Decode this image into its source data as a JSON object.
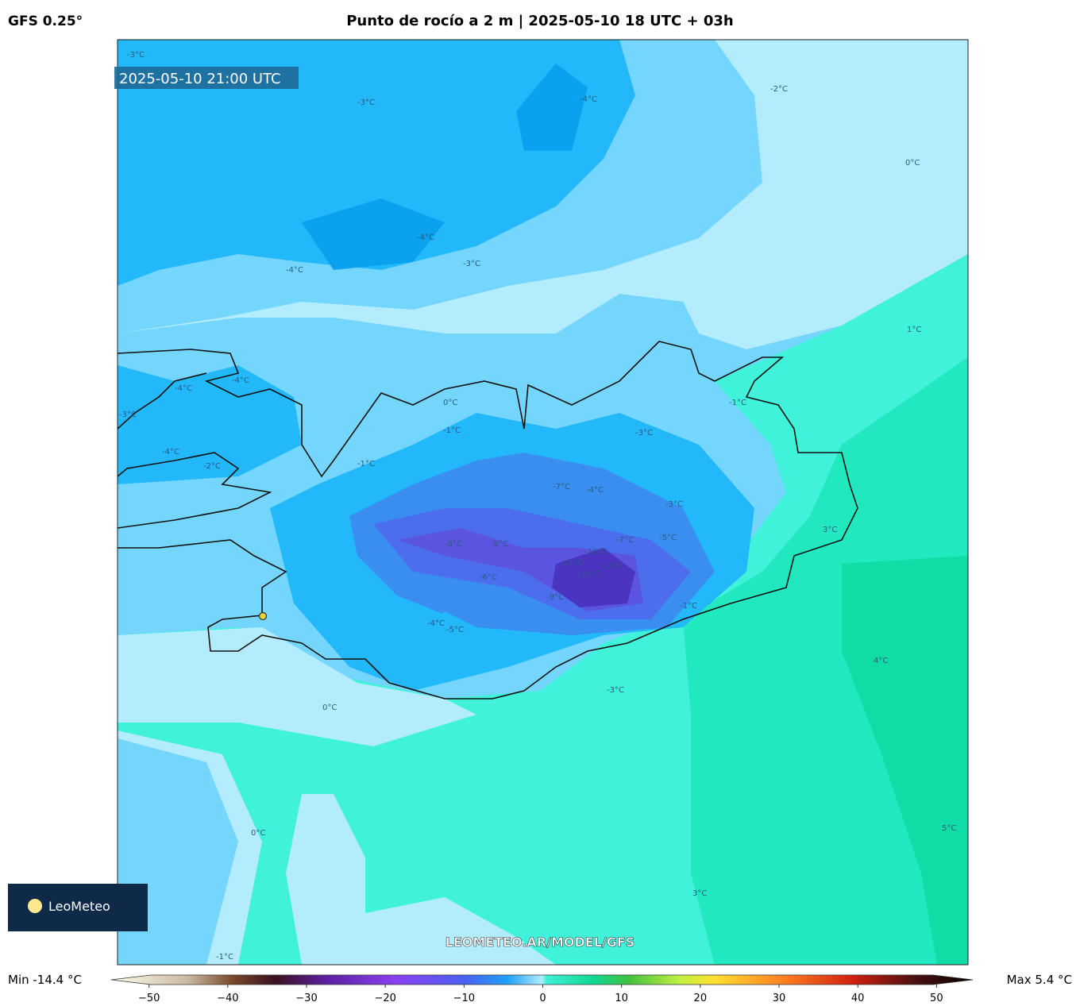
{
  "header": {
    "model": "GFS 0.25°",
    "title": "Punto de rocío a 2 m | 2025-05-10 18 UTC + 03h"
  },
  "map": {
    "valid_time": "2025-05-10 21:00 UTC",
    "watermark": "LEOMETEO.AR/MODEL/GFS",
    "logo": "LeoMeteo",
    "contour_labels": [
      "-3°C",
      "-3°C",
      "-4°C",
      "-2°C",
      "0°C",
      "-4°C",
      "-3°C",
      "-4°C",
      "1°C",
      "-4°C",
      "-4°C",
      "-3°C",
      "0°C",
      "-1°C",
      "-1°C",
      "-3°C",
      "-1°C",
      "-2°C",
      "-4°C",
      "-7°C",
      "-4°C",
      "-3°C",
      "-5°C",
      "-7°C",
      "-8°C",
      "-9°C",
      "-10°C",
      "-11°C",
      "-13°C",
      "-14°C",
      "-6°C",
      "-9°C",
      "-1°C",
      "3°C",
      "-4°C",
      "-5°C",
      "-3°C",
      "0°C",
      "4°C",
      "0°C",
      "5°C",
      "3°C",
      "-1°C"
    ]
  },
  "colorbar": {
    "min_label": "Min -14.4 °C",
    "max_label": "Max 5.4 °C",
    "xlim": [
      -54,
      54
    ],
    "xticks": [
      {
        "value": -50,
        "label": "−50"
      },
      {
        "value": -40,
        "label": "−40"
      },
      {
        "value": -30,
        "label": "−30"
      },
      {
        "value": -20,
        "label": "−20"
      },
      {
        "value": -10,
        "label": "−10"
      },
      0,
      10,
      20,
      30,
      40,
      50
    ]
  }
}
